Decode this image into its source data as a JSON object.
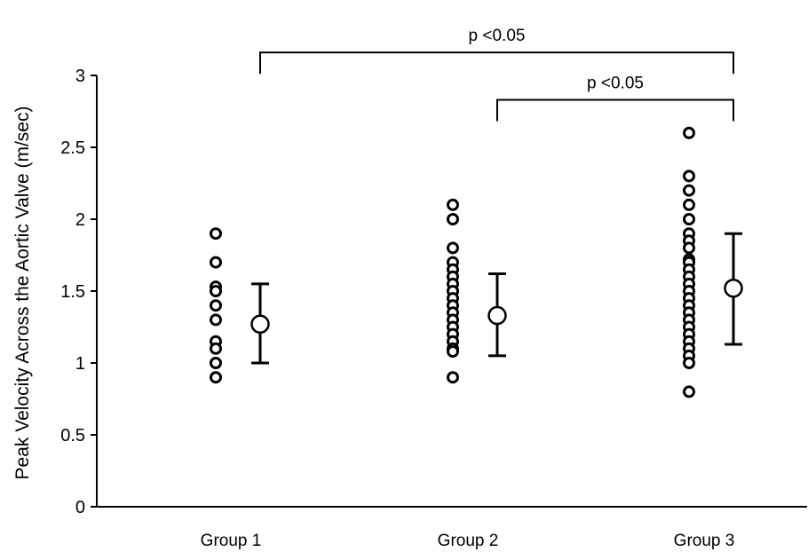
{
  "chart_data": {
    "type": "scatter",
    "ylabel": "Peak Velocity Across the Aortic Valve (m/sec)",
    "ylim": [
      0,
      3
    ],
    "yticks": [
      {
        "value": 0,
        "label": "0"
      },
      {
        "value": 0.5,
        "label": "0.5"
      },
      {
        "value": 1,
        "label": "1"
      },
      {
        "value": 1.5,
        "label": "1.5"
      },
      {
        "value": 2,
        "label": "2"
      },
      {
        "value": 2.5,
        "label": "2.5"
      },
      {
        "value": 3,
        "label": "3"
      }
    ],
    "grid": false,
    "colors": {
      "axis": "#000000",
      "marker_fill": "#ffffff",
      "marker_stroke": "#000000"
    },
    "groups": [
      {
        "name": "Group 1",
        "values": [
          1.9,
          1.7,
          1.53,
          1.5,
          1.4,
          1.3,
          1.15,
          1.1,
          1.0,
          0.9
        ],
        "mean": 1.27,
        "error_low": 1.0,
        "error_high": 1.55
      },
      {
        "name": "Group 2",
        "values": [
          2.1,
          2.0,
          1.8,
          1.7,
          1.65,
          1.6,
          1.55,
          1.5,
          1.45,
          1.4,
          1.35,
          1.3,
          1.25,
          1.2,
          1.15,
          1.1,
          1.08,
          0.9
        ],
        "mean": 1.33,
        "error_low": 1.05,
        "error_high": 1.62
      },
      {
        "name": "Group 3",
        "values": [
          2.6,
          2.3,
          2.2,
          2.1,
          2.0,
          1.9,
          1.85,
          1.8,
          1.72,
          1.7,
          1.65,
          1.6,
          1.55,
          1.5,
          1.45,
          1.4,
          1.35,
          1.3,
          1.25,
          1.2,
          1.15,
          1.1,
          1.05,
          1.0,
          0.8
        ],
        "mean": 1.52,
        "error_low": 1.13,
        "error_high": 1.9
      }
    ],
    "annotations": [
      {
        "text": "p <0.05",
        "from": "Group 1",
        "to": "Group 3",
        "level": 3.16
      },
      {
        "text": "p <0.05",
        "from": "Group 2",
        "to": "Group 3",
        "level": 2.83
      }
    ]
  }
}
